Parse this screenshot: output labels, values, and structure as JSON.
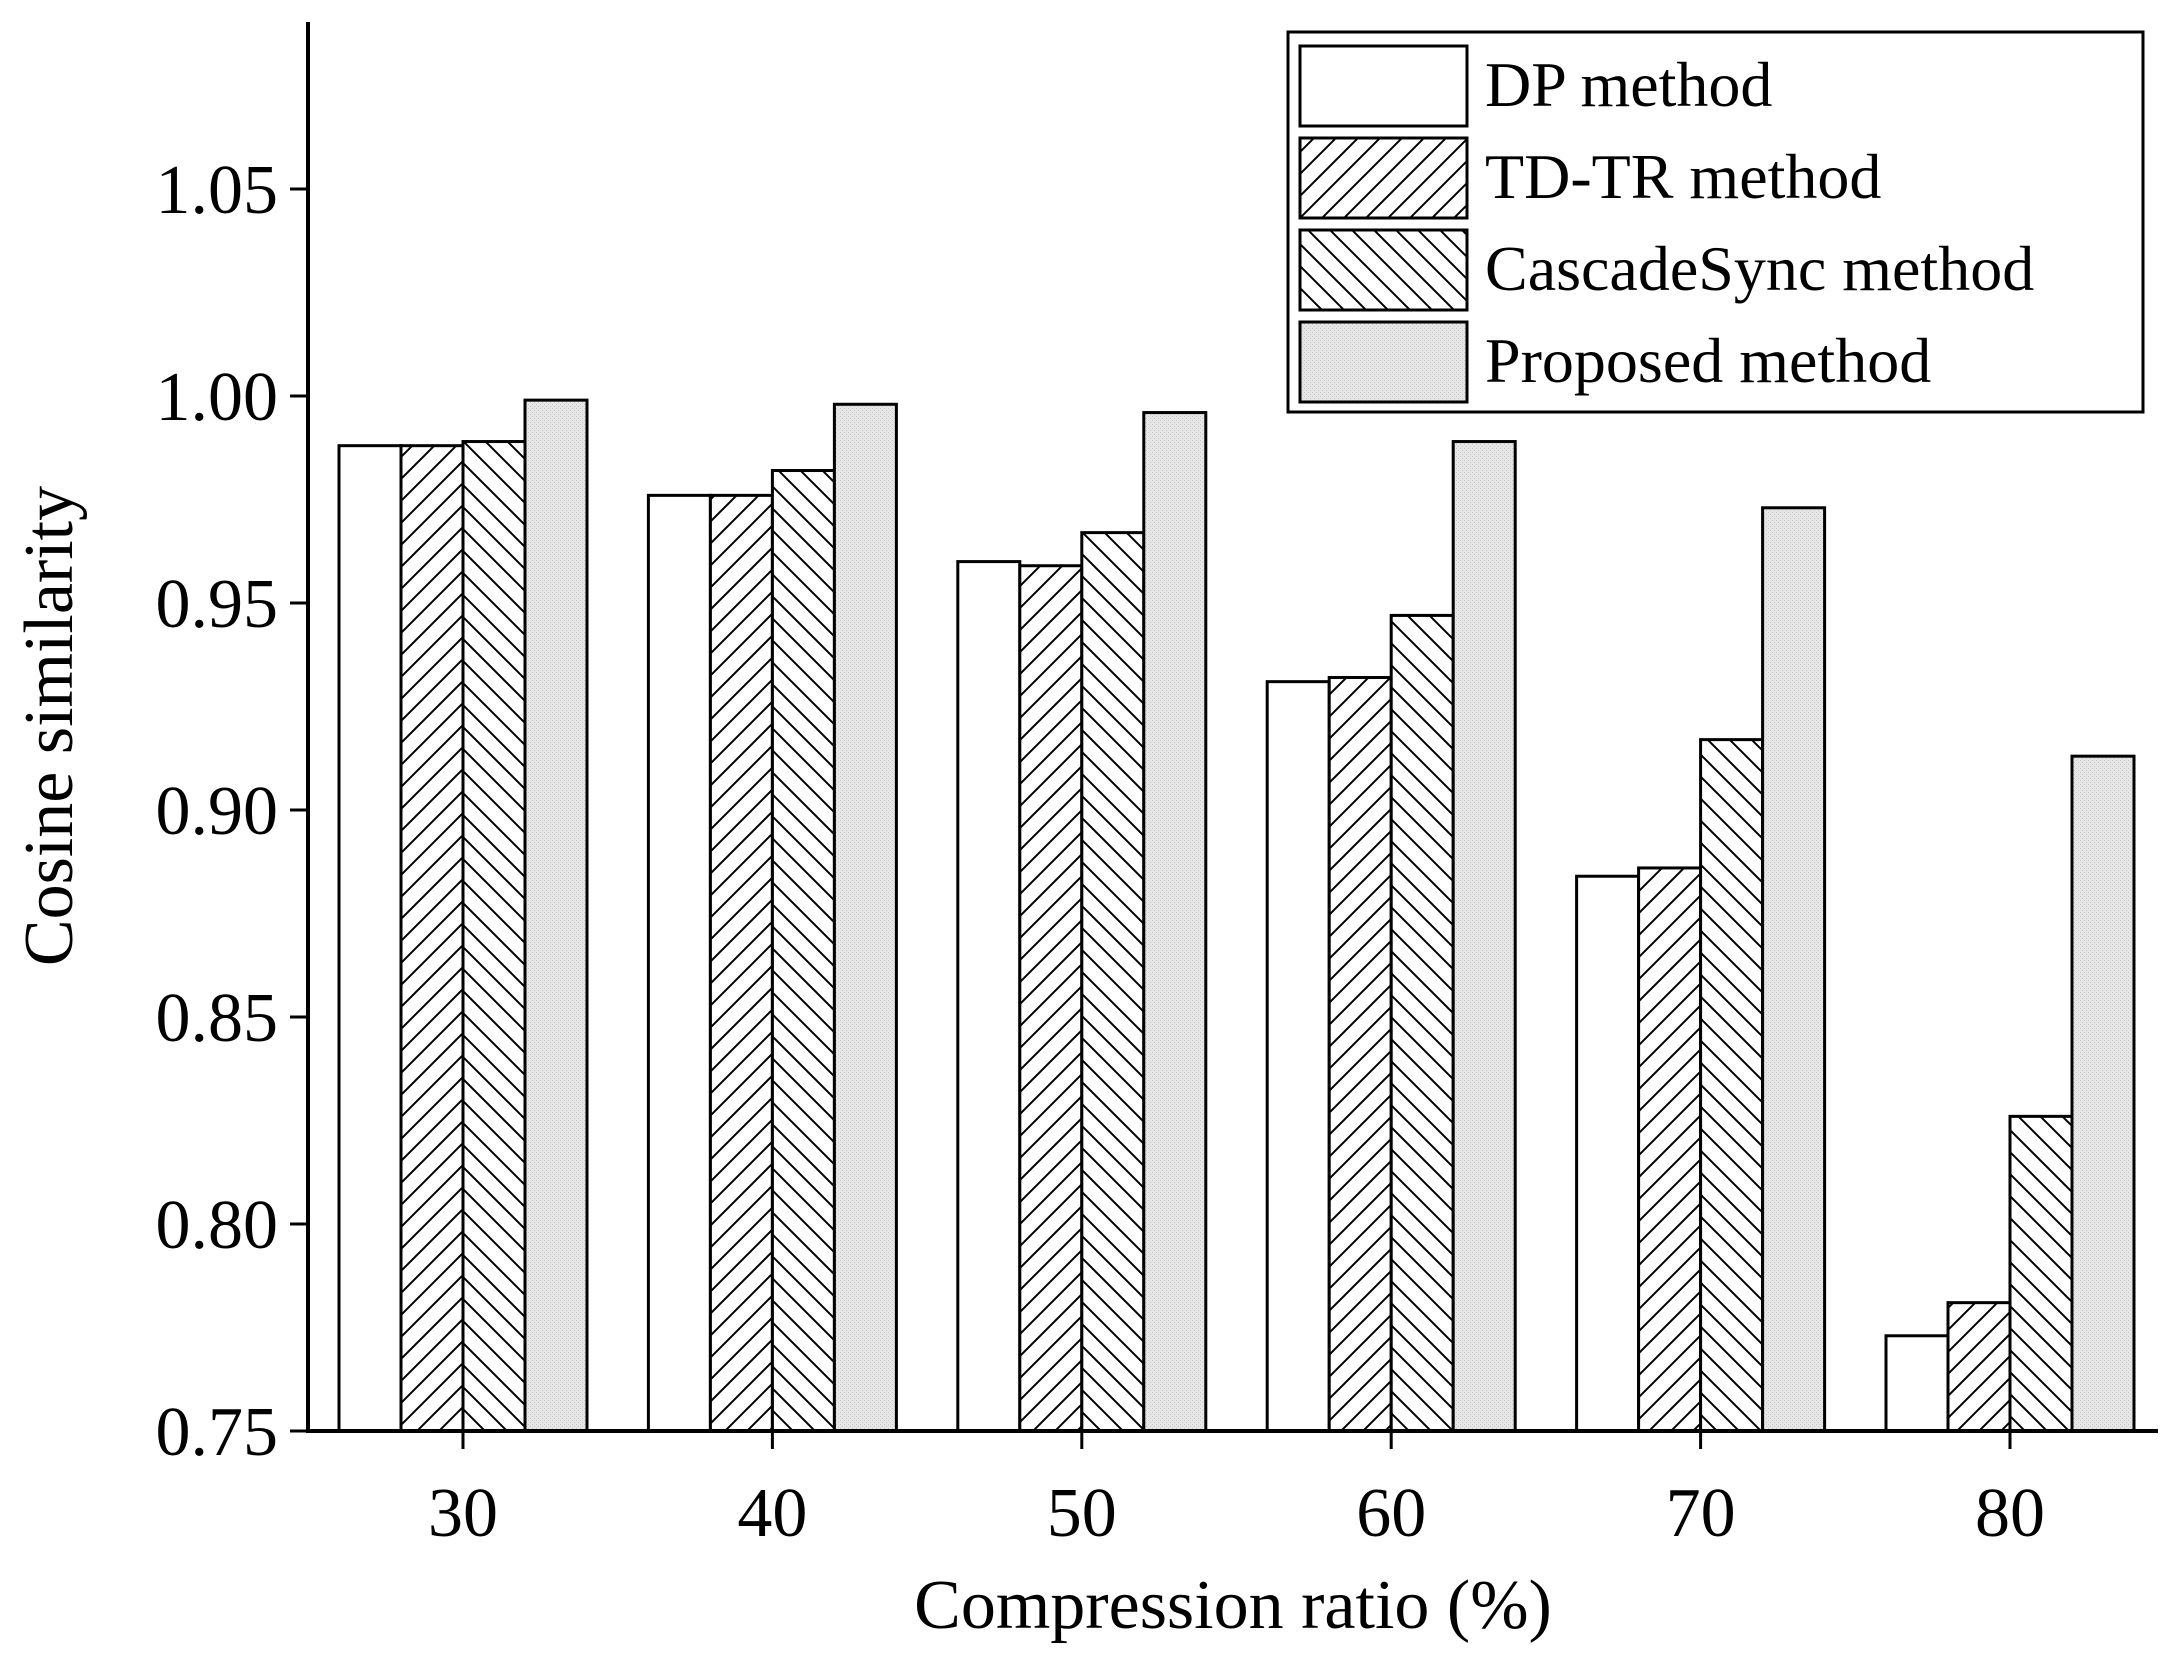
{
  "chart_data": {
    "type": "bar",
    "title": "",
    "xlabel": "Compression ratio (%)",
    "ylabel": "Cosine similarity",
    "categories": [
      "30",
      "40",
      "50",
      "60",
      "70",
      "80"
    ],
    "ylim": [
      0.75,
      1.1
    ],
    "yticks": [
      0.75,
      0.8,
      0.85,
      0.9,
      0.95,
      1.0,
      1.05
    ],
    "ytick_labels": [
      "0.75",
      "0.80",
      "0.85",
      "0.90",
      "0.95",
      "1.00",
      "1.05"
    ],
    "grid": false,
    "legend_position": "top-right",
    "series": [
      {
        "name": "DP method",
        "pattern": "none",
        "fill": "#ffffff",
        "values": [
          0.988,
          0.976,
          0.96,
          0.931,
          0.884,
          0.773
        ]
      },
      {
        "name": "TD-TR method",
        "pattern": "forward-hatch",
        "fill": "#ffffff",
        "values": [
          0.988,
          0.976,
          0.959,
          0.932,
          0.886,
          0.781
        ]
      },
      {
        "name": "CascadeSync method",
        "pattern": "backward-hatch",
        "fill": "#ffffff",
        "values": [
          0.989,
          0.982,
          0.967,
          0.947,
          0.917,
          0.826
        ]
      },
      {
        "name": "Proposed method",
        "pattern": "dots",
        "fill": "#e6e6e6",
        "values": [
          0.999,
          0.998,
          0.996,
          0.989,
          0.973,
          0.913
        ]
      }
    ]
  }
}
